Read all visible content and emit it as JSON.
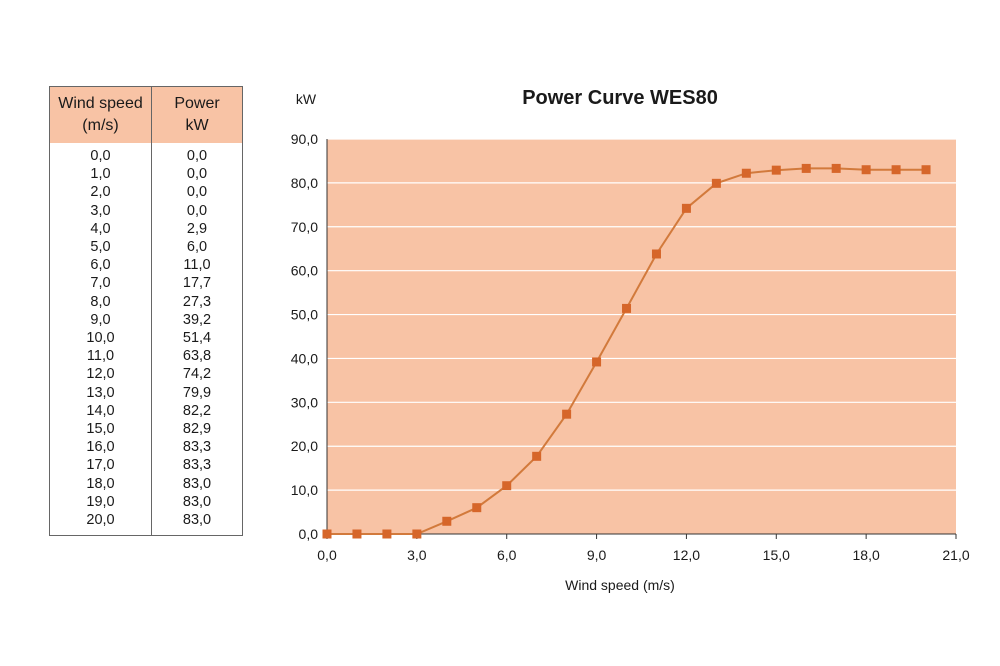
{
  "table": {
    "headers": [
      {
        "line1": "Wind speed",
        "line2": "(m/s)"
      },
      {
        "line1": "Power",
        "line2": "kW"
      }
    ],
    "rows": [
      [
        "0,0",
        "0,0"
      ],
      [
        "1,0",
        "0,0"
      ],
      [
        "2,0",
        "0,0"
      ],
      [
        "3,0",
        "0,0"
      ],
      [
        "4,0",
        "2,9"
      ],
      [
        "5,0",
        "6,0"
      ],
      [
        "6,0",
        "11,0"
      ],
      [
        "7,0",
        "17,7"
      ],
      [
        "8,0",
        "27,3"
      ],
      [
        "9,0",
        "39,2"
      ],
      [
        "10,0",
        "51,4"
      ],
      [
        "11,0",
        "63,8"
      ],
      [
        "12,0",
        "74,2"
      ],
      [
        "13,0",
        "79,9"
      ],
      [
        "14,0",
        "82,2"
      ],
      [
        "15,0",
        "82,9"
      ],
      [
        "16,0",
        "83,3"
      ],
      [
        "17,0",
        "83,3"
      ],
      [
        "18,0",
        "83,0"
      ],
      [
        "19,0",
        "83,0"
      ],
      [
        "20,0",
        "83,0"
      ]
    ]
  },
  "chart_data": {
    "type": "line",
    "title": "Power Curve WES80",
    "xlabel": "Wind speed (m/s)",
    "ylabel": "kW",
    "xlim": [
      0,
      21
    ],
    "ylim": [
      0,
      90
    ],
    "xticks": [
      "0,0",
      "3,0",
      "6,0",
      "9,0",
      "12,0",
      "15,0",
      "18,0",
      "21,0"
    ],
    "yticks": [
      "0,0",
      "10,0",
      "20,0",
      "30,0",
      "40,0",
      "50,0",
      "60,0",
      "70,0",
      "80,0",
      "90,0"
    ],
    "grid": "horizontal",
    "x": [
      0,
      1,
      2,
      3,
      4,
      5,
      6,
      7,
      8,
      9,
      10,
      11,
      12,
      13,
      14,
      15,
      16,
      17,
      18,
      19,
      20
    ],
    "series": [
      {
        "values": [
          0,
          0,
          0,
          0,
          2.9,
          6.0,
          11.0,
          17.7,
          27.3,
          39.2,
          51.4,
          63.8,
          74.2,
          79.9,
          82.2,
          82.9,
          83.3,
          83.3,
          83.0,
          83.0,
          83.0
        ]
      }
    ],
    "colors": {
      "plot_bg": "#f8c3a5",
      "line": "#d27a3c",
      "marker": "#d6662a",
      "grid": "#ffffff",
      "header_bg": "#f8c3a5"
    }
  }
}
